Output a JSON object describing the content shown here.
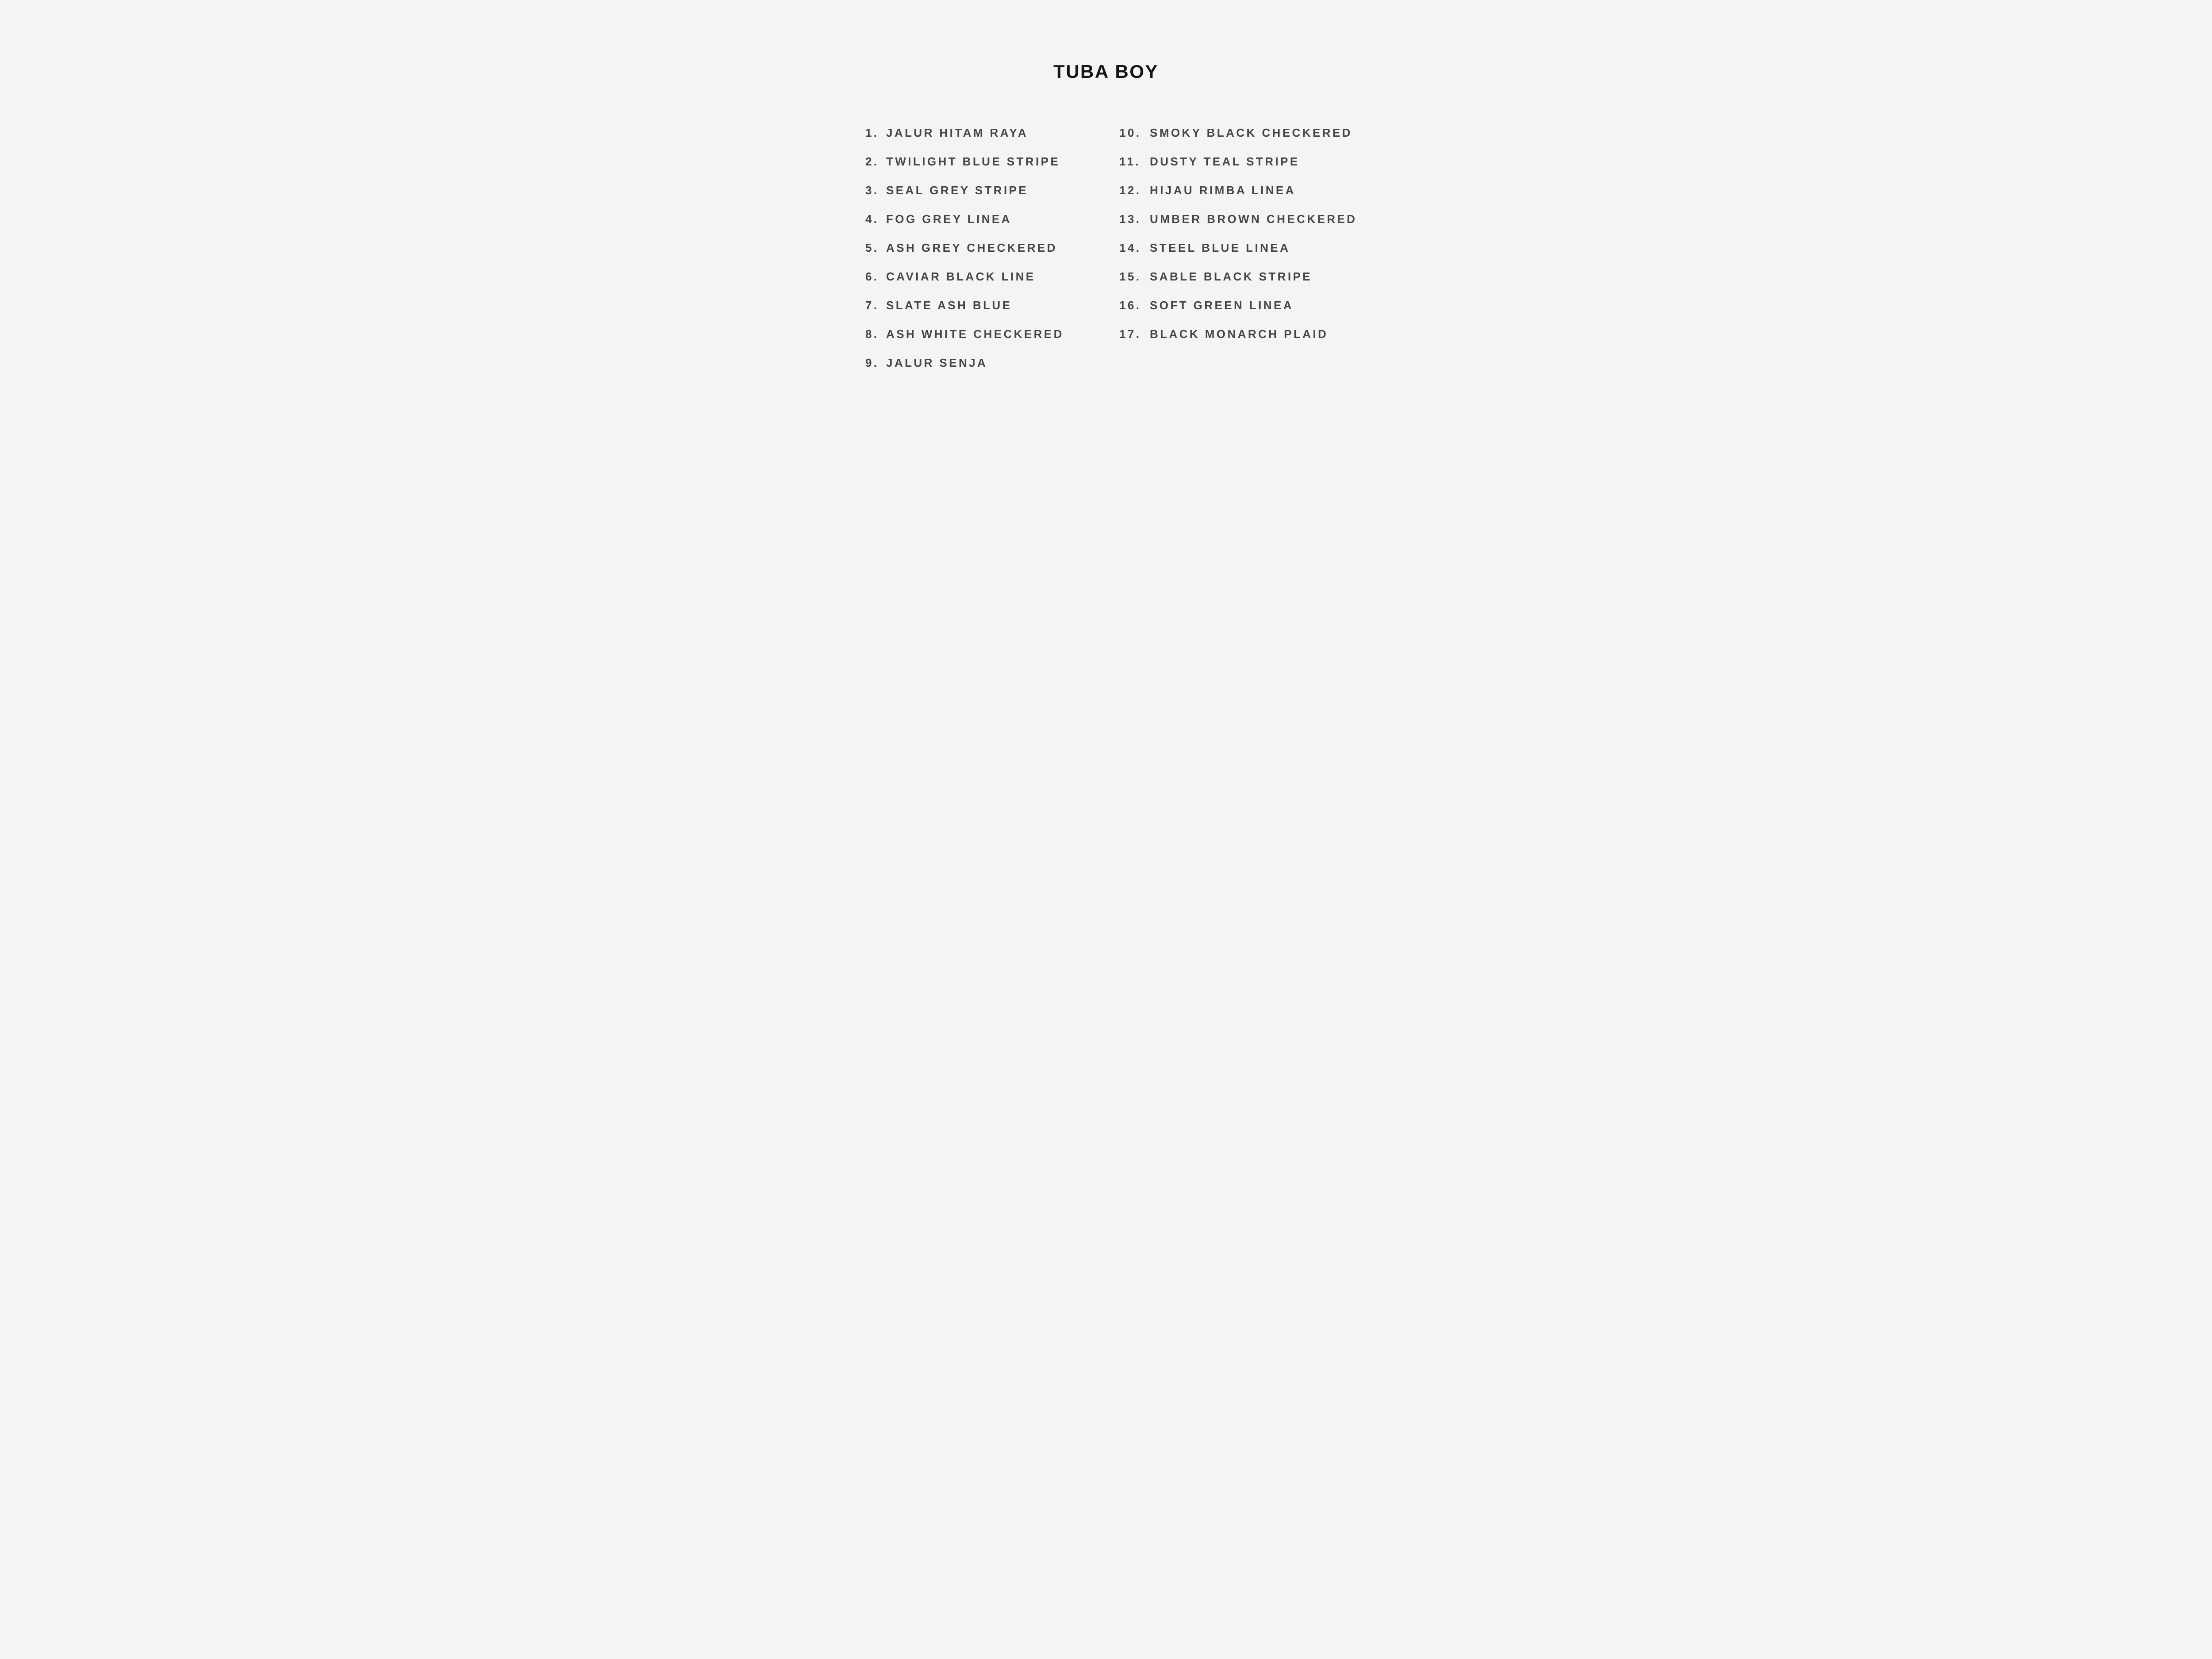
{
  "page": {
    "title": "TUBA BOY",
    "background": "#f4f4f2",
    "title_color": "#141414",
    "text_color": "#454545"
  },
  "list": {
    "columns": [
      {
        "items": [
          {
            "num": "1.",
            "label": "JALUR HITAM RAYA"
          },
          {
            "num": "2.",
            "label": "TWILIGHT BLUE STRIPE"
          },
          {
            "num": "3.",
            "label": "SEAL GREY STRIPE"
          },
          {
            "num": "4.",
            "label": "FOG GREY LINEA"
          },
          {
            "num": "5.",
            "label": "ASH GREY CHECKERED"
          },
          {
            "num": "6.",
            "label": "CAVIAR BLACK LINE"
          },
          {
            "num": "7.",
            "label": "SLATE ASH BLUE"
          },
          {
            "num": "8.",
            "label": "ASH WHITE CHECKERED"
          },
          {
            "num": "9.",
            "label": "JALUR SENJA"
          }
        ]
      },
      {
        "items": [
          {
            "num": "10.",
            "label": "SMOKY BLACK CHECKERED"
          },
          {
            "num": "11.",
            "label": "DUSTY TEAL STRIPE"
          },
          {
            "num": "12.",
            "label": "HIJAU RIMBA LINEA"
          },
          {
            "num": "13.",
            "label": "UMBER BROWN CHECKERED"
          },
          {
            "num": "14.",
            "label": "STEEL BLUE LINEA"
          },
          {
            "num": "15.",
            "label": "SABLE BLACK STRIPE"
          },
          {
            "num": "16.",
            "label": "SOFT GREEN LINEA"
          },
          {
            "num": "17.",
            "label": "BLACK MONARCH PLAID"
          }
        ]
      }
    ]
  }
}
